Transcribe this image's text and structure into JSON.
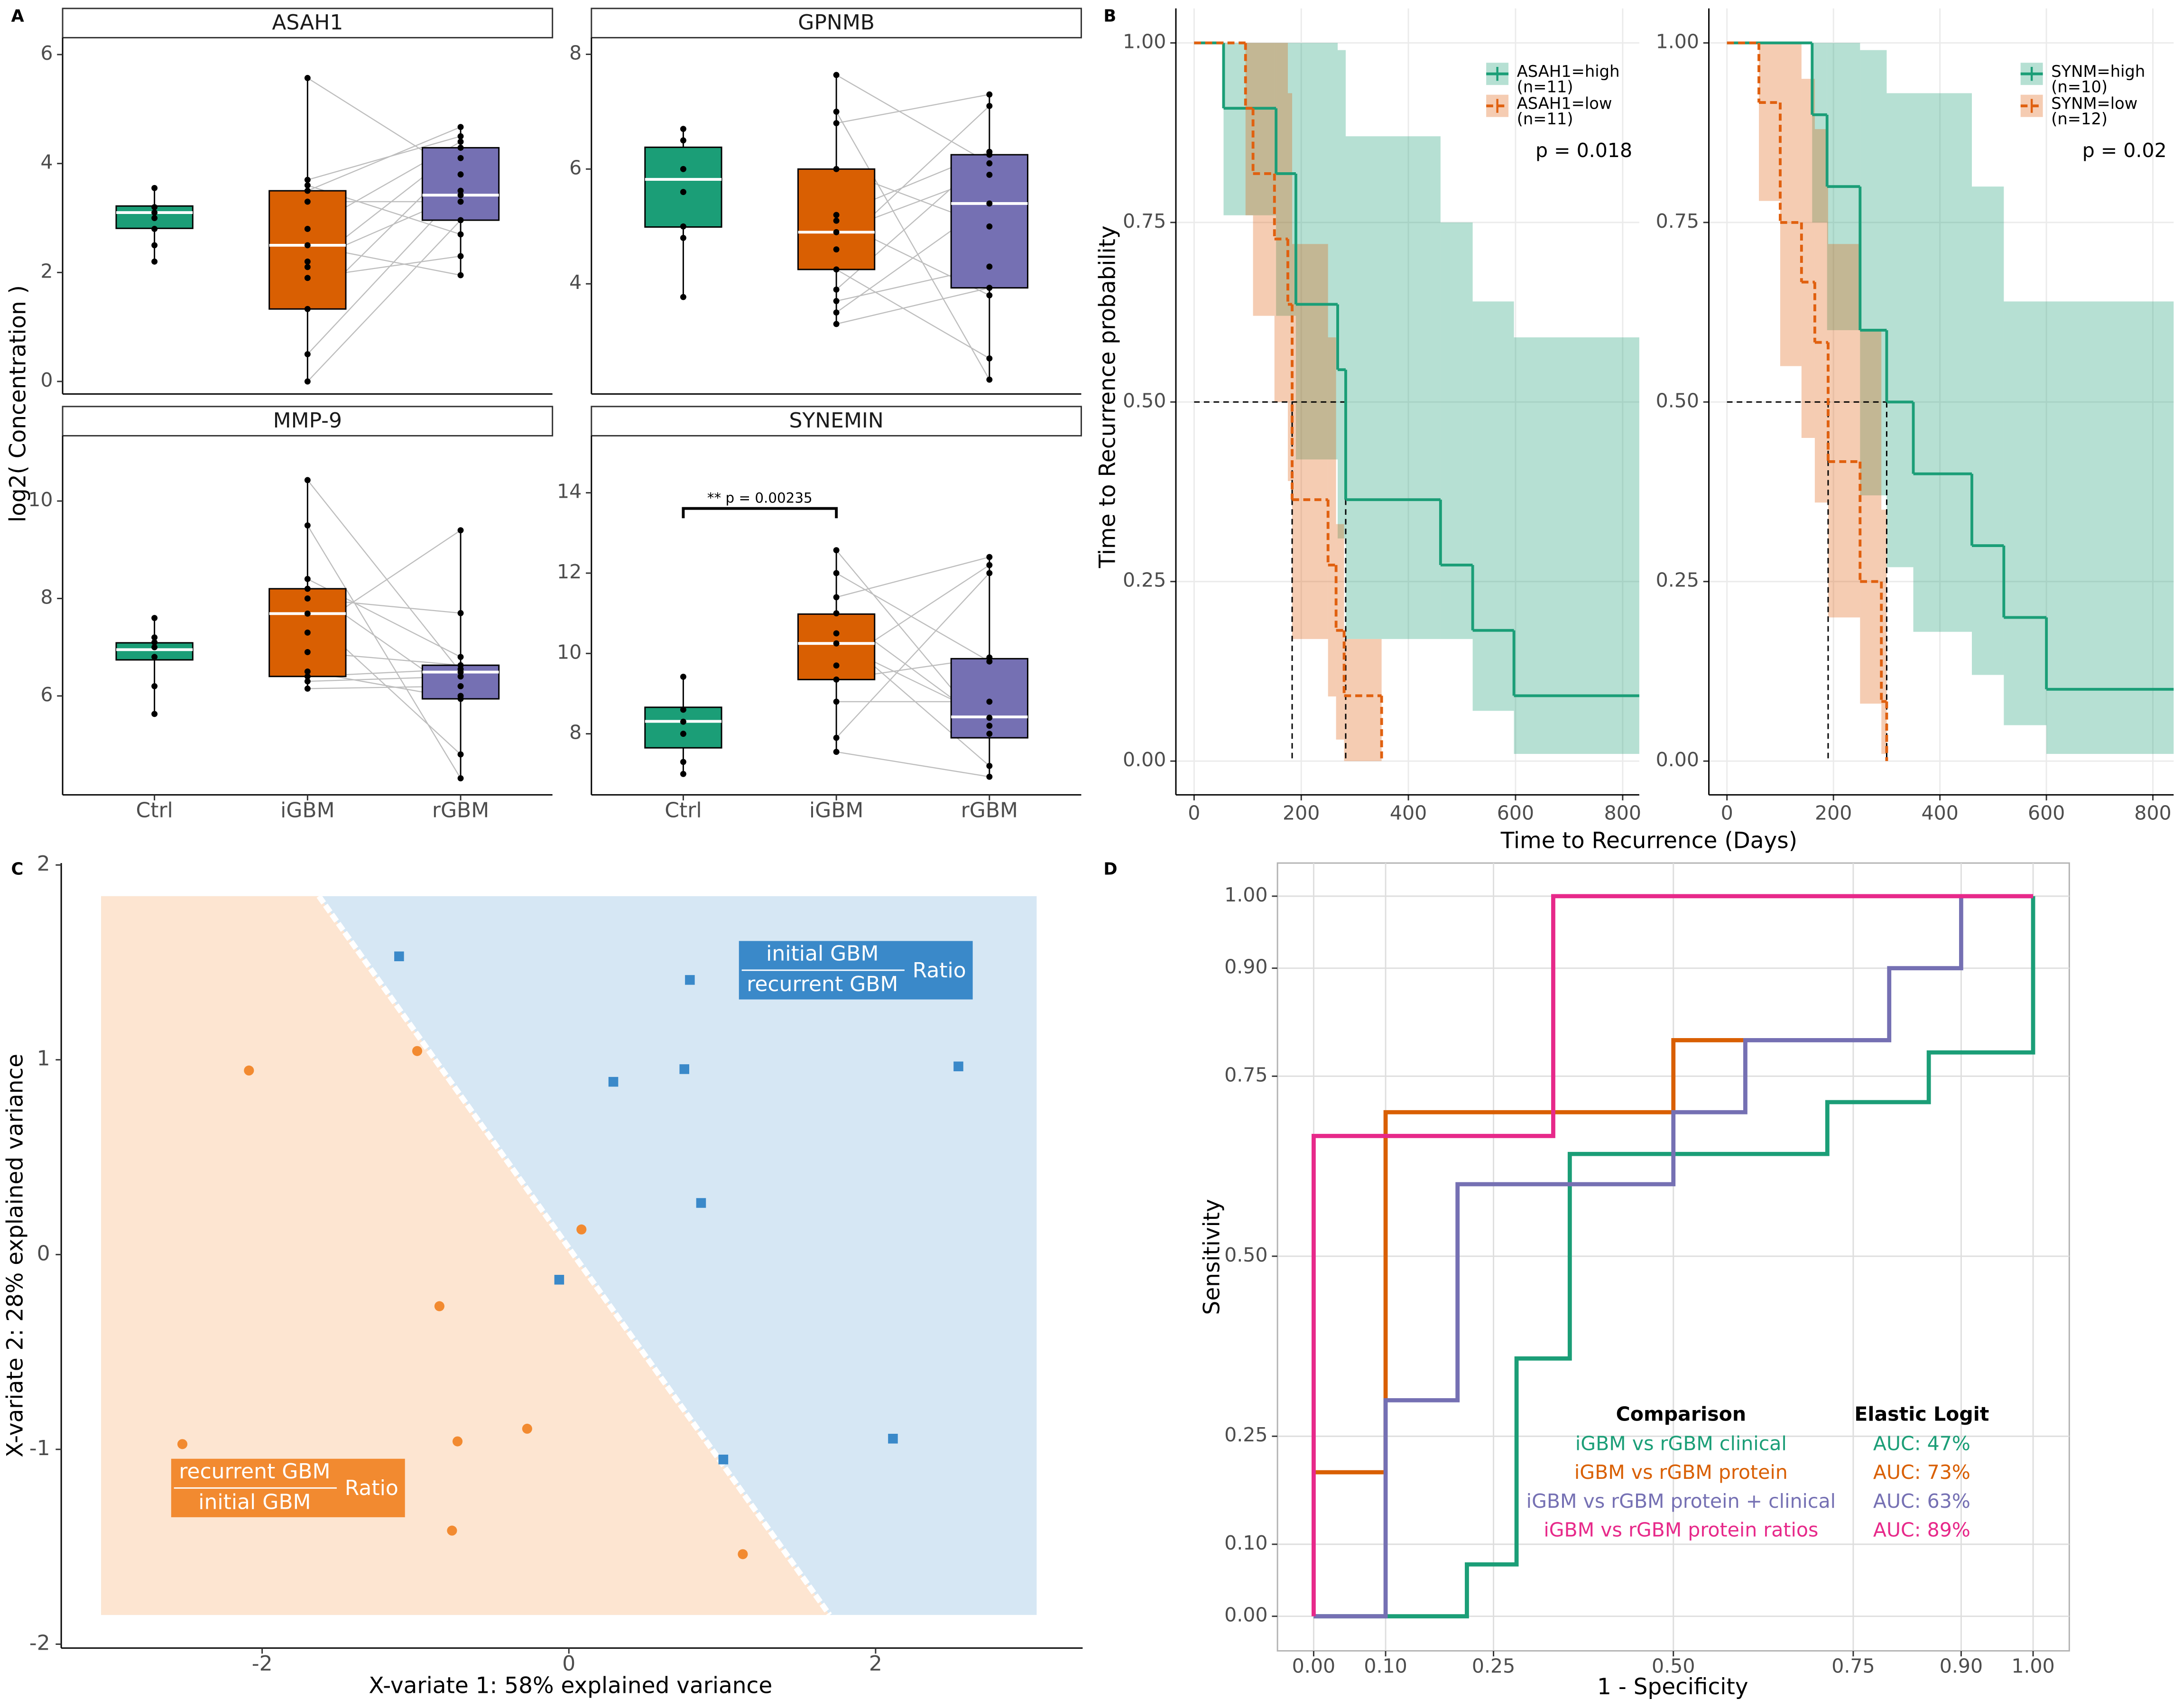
{
  "chart_data": [
    {
      "type": "box",
      "panel": "A",
      "ylabel": "log2( Concentration )",
      "categories": [
        "Ctrl",
        "iGBM",
        "rGBM"
      ],
      "colors": [
        "#1b9e77",
        "#d95f02",
        "#7570b3"
      ],
      "facets": [
        {
          "title": "ASAH1",
          "ylim": [
            -0.23,
            6.31
          ],
          "yticks": [
            0,
            2,
            4,
            6
          ],
          "boxes": [
            {
              "min": 2.2,
              "q1": 2.81,
              "median": 3.1,
              "q3": 3.22,
              "max": 3.55,
              "points": [
                3.55,
                3.2,
                3.1,
                3.0,
                2.8,
                2.5,
                2.2
              ]
            },
            {
              "min": 0,
              "q1": 1.33,
              "median": 2.5,
              "q3": 3.5,
              "max": 5.57,
              "points": [
                5.57,
                3.7,
                3.6,
                3.5,
                3.3,
                2.8,
                2.5,
                2.2,
                2.1,
                1.9,
                1.33,
                0.5,
                0
              ]
            },
            {
              "min": 1.95,
              "q1": 2.96,
              "median": 3.42,
              "q3": 4.29,
              "max": 4.67,
              "points": [
                3.8,
                4.5,
                2.7,
                4.67,
                3.3,
                4.4,
                1.95,
                3.42,
                4.29,
                2.3,
                4.1,
                3.5,
                2.96
              ]
            }
          ]
        },
        {
          "title": "GPNMB",
          "ylim": [
            2.08,
            8.29
          ],
          "yticks": [
            4,
            6,
            8
          ],
          "boxes": [
            {
              "min": 3.77,
              "q1": 4.99,
              "median": 5.82,
              "q3": 6.38,
              "max": 6.7,
              "points": [
                6.7,
                6.5,
                6.0,
                5.6,
                5.0,
                4.8,
                3.77
              ]
            },
            {
              "min": 3.3,
              "q1": 4.25,
              "median": 4.9,
              "q3": 6.0,
              "max": 7.64,
              "points": [
                7.64,
                7.0,
                6.8,
                6.0,
                5.2,
                5.1,
                4.9,
                4.6,
                4.25,
                3.9,
                3.7,
                3.5,
                3.3
              ]
            },
            {
              "min": 2.33,
              "q1": 3.93,
              "median": 5.4,
              "q3": 6.25,
              "max": 7.3,
              "points": [
                6.1,
                2.33,
                7.3,
                5.0,
                6.3,
                3.8,
                5.9,
                7.1,
                2.7,
                6.25,
                4.3,
                5.4,
                3.93
              ]
            }
          ]
        },
        {
          "title": "MMP-9",
          "ylim": [
            3.97,
            11.34
          ],
          "yticks": [
            6,
            8,
            10
          ],
          "boxes": [
            {
              "min": 5.63,
              "q1": 6.74,
              "median": 6.95,
              "q3": 7.09,
              "max": 7.6,
              "points": [
                7.6,
                7.2,
                7.1,
                7.0,
                6.8,
                6.2,
                5.63
              ]
            },
            {
              "min": 6.15,
              "q1": 6.4,
              "median": 7.69,
              "q3": 8.2,
              "max": 10.43,
              "points": [
                10.43,
                9.5,
                8.4,
                8.2,
                8.0,
                7.69,
                7.3,
                6.9,
                6.5,
                6.4,
                6.3,
                6.15
              ]
            },
            {
              "min": 4.31,
              "q1": 5.94,
              "median": 6.49,
              "q3": 6.63,
              "max": 9.4,
              "points": [
                6.49,
                4.31,
                6.8,
                6.0,
                7.7,
                4.8,
                9.4,
                6.63,
                5.94,
                6.55,
                6.4,
                6.2
              ]
            }
          ]
        },
        {
          "title": "SYNEMIN",
          "ylim": [
            6.48,
            15.42
          ],
          "yticks": [
            8,
            10,
            12,
            14
          ],
          "annotation": "** p = 0.00235",
          "boxes": [
            {
              "min": 7.0,
              "q1": 7.65,
              "median": 8.31,
              "q3": 8.66,
              "max": 9.42,
              "points": [
                9.42,
                8.6,
                8.3,
                8.0,
                7.3,
                7.0
              ]
            },
            {
              "min": 7.55,
              "q1": 9.35,
              "median": 10.25,
              "q3": 10.98,
              "max": 12.57,
              "points": [
                12.57,
                12.0,
                11.4,
                11.0,
                10.5,
                10.25,
                9.7,
                9.35,
                8.8,
                7.9,
                7.55
              ]
            },
            {
              "min": 6.93,
              "q1": 7.9,
              "median": 8.42,
              "q3": 9.87,
              "max": 12.4,
              "points": [
                8.0,
                9.8,
                12.4,
                8.2,
                7.2,
                8.4,
                12.2,
                9.9,
                8.8,
                12.0,
                6.93
              ]
            }
          ]
        }
      ]
    },
    {
      "type": "km",
      "panel": "B",
      "xlabel": "Time to Recurrence (Days)",
      "ylabel": "Time to Recurrence probability",
      "ylim": [
        -0.047,
        1.048
      ],
      "median_y": 0.5,
      "grid": true,
      "xticks": [
        0,
        200,
        400,
        600,
        800
      ],
      "yticks": [
        {
          "value": 0,
          "label": "0.00"
        },
        {
          "value": 0.25,
          "label": "0.25"
        },
        {
          "value": 0.5,
          "label": "0.50"
        },
        {
          "value": 0.75,
          "label": "0.75"
        },
        {
          "value": 1,
          "label": "1.00"
        }
      ],
      "facets": [
        {
          "xlim": [
            -34,
            831
          ],
          "pvalue": "p = 0.018",
          "series": [
            {
              "name": "ASAH1=high",
              "n_label": "(n=11)",
              "color": "#1b9e77",
              "dashed": false,
              "median": 283,
              "x": [
                0,
                55,
                153,
                190,
                268,
                283,
                460,
                520,
                597
              ],
              "values": [
                1,
                0.909,
                0.818,
                0.636,
                0.545,
                0.364,
                0.273,
                0.182,
                0.091
              ],
              "upper": [
                1,
                1,
                1,
                1,
                0.99,
                0.87,
                0.75,
                0.64,
                0.59
              ],
              "lower": [
                1,
                0.76,
                0.62,
                0.42,
                0.31,
                0.17,
                0.17,
                0.07,
                0.01
              ]
            },
            {
              "name": "ASAH1=low",
              "n_label": "(n=11)",
              "color": "#e0600f",
              "dashed": true,
              "median": 183,
              "x": [
                0,
                96,
                110,
                150,
                175,
                183,
                250,
                265,
                280,
                350
              ],
              "values": [
                1,
                0.909,
                0.818,
                0.727,
                0.636,
                0.364,
                0.273,
                0.182,
                0.091,
                0
              ],
              "upper": [
                1,
                1,
                1,
                1,
                0.93,
                0.72,
                0.59,
                0.33,
                0.17,
                0
              ],
              "lower": [
                1,
                0.76,
                0.62,
                0.5,
                0.39,
                0.17,
                0.09,
                0.03,
                0,
                0
              ]
            }
          ]
        },
        {
          "xlim": [
            -34,
            839
          ],
          "pvalue": "p = 0.02",
          "series": [
            {
              "name": "SYNM=high",
              "n_label": "(n=10)",
              "color": "#1b9e77",
              "dashed": false,
              "median": 300,
              "x": [
                0,
                160,
                188,
                250,
                300,
                350,
                460,
                520,
                600
              ],
              "values": [
                1,
                0.9,
                0.8,
                0.6,
                0.5,
                0.4,
                0.3,
                0.2,
                0.1
              ],
              "upper": [
                1,
                1,
                1,
                0.99,
                0.93,
                0.93,
                0.8,
                0.64,
                0.64
              ],
              "lower": [
                1,
                0.75,
                0.6,
                0.37,
                0.27,
                0.18,
                0.12,
                0.05,
                0.01
              ]
            },
            {
              "name": "SYNM=low",
              "n_label": "(n=12)",
              "color": "#e0600f",
              "dashed": true,
              "median": 190,
              "x": [
                0,
                60,
                100,
                140,
                165,
                190,
                250,
                290,
                300
              ],
              "values": [
                1,
                0.917,
                0.75,
                0.667,
                0.583,
                0.417,
                0.25,
                0.083,
                0
              ],
              "upper": [
                1,
                1,
                1,
                0.95,
                0.88,
                0.72,
                0.6,
                0.35,
                0
              ],
              "lower": [
                1,
                0.78,
                0.55,
                0.45,
                0.36,
                0.2,
                0.08,
                0.01,
                0
              ]
            }
          ]
        }
      ]
    },
    {
      "type": "scatter",
      "panel": "C",
      "xlabel": "X-variate 1: 58% explained variance",
      "ylabel": "X-variate 2: 28% explained variance",
      "xlim": [
        -3.31,
        3.35
      ],
      "ylim": [
        -2.02,
        2.01
      ],
      "xticks": [
        -2,
        0,
        2
      ],
      "yticks": [
        -2,
        -1,
        0,
        1,
        2
      ],
      "region": {
        "xlim": [
          -3.05,
          3.05
        ],
        "ylim": [
          -1.85,
          1.84
        ],
        "boundary": [
          [
            -1.63,
            1.84
          ],
          [
            1.7,
            -1.85
          ]
        ]
      },
      "series": [
        {
          "marker": "circle",
          "color": "#f28a30",
          "region_color": "#fde5d1",
          "label": {
            "numerator": "recurrent GBM",
            "denominator": "initial GBM",
            "suffix": "Ratio"
          },
          "x": [
            -2.086,
            -0.989,
            0.082,
            -0.844,
            -0.272,
            -0.726,
            -2.52,
            -0.762,
            1.134
          ],
          "values": [
            0.945,
            1.045,
            0.129,
            -0.265,
            -0.894,
            -0.959,
            -0.973,
            -1.417,
            -1.538
          ]
        },
        {
          "marker": "square",
          "color": "#3a89c9",
          "region_color": "#d6e7f4",
          "label": {
            "numerator": "initial GBM",
            "denominator": "recurrent GBM",
            "suffix": "Ratio"
          },
          "x": [
            -1.107,
            0.789,
            0.29,
            0.753,
            2.54,
            0.862,
            -0.063,
            1.007,
            2.113
          ],
          "values": [
            1.531,
            1.41,
            0.887,
            0.952,
            0.966,
            0.265,
            -0.129,
            -1.052,
            -0.945
          ]
        }
      ]
    },
    {
      "type": "line",
      "panel": "D",
      "xlabel": "1 - Specificity",
      "ylabel": "Sensitivity",
      "xlim": [
        -0.0503,
        1.0503
      ],
      "ylim": [
        -0.048,
        1.046
      ],
      "grid": true,
      "xticks": [
        {
          "value": 0,
          "label": "0.00"
        },
        {
          "value": 0.1,
          "label": "0.10"
        },
        {
          "value": 0.25,
          "label": "0.25"
        },
        {
          "value": 0.5,
          "label": "0.50"
        },
        {
          "value": 0.75,
          "label": "0.75"
        },
        {
          "value": 0.9,
          "label": "0.90"
        },
        {
          "value": 1,
          "label": "1.00"
        }
      ],
      "yticks": [
        {
          "value": 0,
          "label": "0.00"
        },
        {
          "value": 0.1,
          "label": "0.10"
        },
        {
          "value": 0.25,
          "label": "0.25"
        },
        {
          "value": 0.5,
          "label": "0.50"
        },
        {
          "value": 0.75,
          "label": "0.75"
        },
        {
          "value": 0.9,
          "label": "0.90"
        },
        {
          "value": 1,
          "label": "1.00"
        }
      ],
      "legend_title": "Comparison",
      "value_title": "Elastic Logit",
      "series": [
        {
          "name": "iGBM vs rGBM clinical",
          "auc_label": "AUC: 47%",
          "color": "#1b9e77",
          "x": [
            0,
            0.213,
            0.213,
            0.282,
            0.282,
            0.356,
            0.356,
            0.714,
            0.714,
            0.855,
            0.855,
            1,
            1
          ],
          "values": [
            0,
            0,
            0.072,
            0.072,
            0.358,
            0.358,
            0.642,
            0.642,
            0.714,
            0.714,
            0.783,
            0.783,
            1
          ]
        },
        {
          "name": "iGBM vs rGBM protein",
          "auc_label": "AUC: 73%",
          "color": "#d95f02",
          "x": [
            0,
            0.1,
            0.1,
            0.5,
            0.5,
            0.6
          ],
          "values": [
            0.2,
            0.2,
            0.7,
            0.7,
            0.8,
            0.8
          ]
        },
        {
          "name": "iGBM vs rGBM protein + clinical",
          "auc_label": "AUC: 63%",
          "color": "#7570b3",
          "x": [
            0,
            0.1,
            0.1,
            0.2,
            0.2,
            0.5,
            0.5,
            0.6,
            0.6,
            0.8,
            0.8,
            0.9,
            0.9,
            1
          ],
          "values": [
            0,
            0,
            0.3,
            0.3,
            0.6,
            0.6,
            0.7,
            0.7,
            0.8,
            0.8,
            0.9,
            0.9,
            1,
            1
          ]
        },
        {
          "name": "iGBM vs rGBM protein ratios",
          "auc_label": "AUC: 89%",
          "color": "#e7298a",
          "x": [
            0,
            0,
            0.333,
            0.333,
            1
          ],
          "values": [
            0,
            0.667,
            0.667,
            1,
            1
          ]
        }
      ]
    }
  ]
}
